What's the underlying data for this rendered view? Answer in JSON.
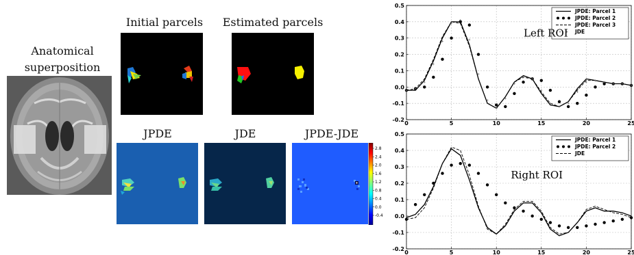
{
  "captions": {
    "anatomical_line1": "Anatomical",
    "anatomical_line2": "superposition",
    "initial": "Initial parcels",
    "estimated": "Estimated parcels",
    "jpde": "JPDE",
    "jde": "JDE",
    "diff": "JPDE-JDE"
  },
  "colorbar": {
    "ticks": [
      "2.8",
      "2.4",
      "2.0",
      "1.6",
      "1.2",
      "0.8",
      "0.4",
      "0.0",
      "-0.4"
    ]
  },
  "chart_data": [
    {
      "type": "line",
      "annotation": "Left ROI",
      "xlim": [
        0,
        25
      ],
      "ylim": [
        -0.2,
        0.5
      ],
      "xticks": [
        "0",
        "5",
        "10",
        "15",
        "20",
        "25"
      ],
      "yticks": [
        "-0.2",
        "-0.1",
        "0.0",
        "0.1",
        "0.2",
        "0.3",
        "0.4",
        "0.5"
      ],
      "grid": true,
      "legend": "top-right",
      "x": [
        0,
        1,
        2,
        3,
        4,
        5,
        6,
        7,
        8,
        9,
        10,
        11,
        12,
        13,
        14,
        15,
        16,
        17,
        18,
        19,
        20,
        21,
        22,
        23,
        24,
        25
      ],
      "series": [
        {
          "name": "JPDE: Parcel 1",
          "style": "solid",
          "values": [
            -0.02,
            -0.02,
            0.04,
            0.16,
            0.3,
            0.4,
            0.4,
            0.26,
            0.05,
            -0.1,
            -0.13,
            -0.06,
            0.03,
            0.07,
            0.05,
            -0.04,
            -0.11,
            -0.12,
            -0.09,
            -0.01,
            0.05,
            0.04,
            0.03,
            0.02,
            0.02,
            0.01
          ]
        },
        {
          "name": "JPDE: Parcel 2",
          "style": "dots",
          "values": [
            -0.02,
            -0.01,
            0.0,
            0.06,
            0.17,
            0.3,
            0.4,
            0.38,
            0.2,
            0.0,
            -0.11,
            -0.12,
            -0.04,
            0.03,
            0.05,
            0.04,
            -0.02,
            -0.09,
            -0.12,
            -0.1,
            -0.05,
            0.0,
            0.02,
            0.02,
            0.02,
            0.01
          ]
        },
        {
          "name": "JPDE: Parcel 3",
          "style": "dashed",
          "values": [
            -0.02,
            -0.01,
            0.05,
            0.17,
            0.31,
            0.4,
            0.39,
            0.25,
            0.05,
            -0.1,
            -0.13,
            -0.06,
            0.03,
            0.06,
            0.05,
            -0.03,
            -0.1,
            -0.12,
            -0.09,
            -0.02,
            0.04,
            0.04,
            0.03,
            0.02,
            0.02,
            0.01
          ]
        },
        {
          "name": "JDE",
          "style": "plus",
          "values": [
            -0.02,
            -0.01,
            0.03,
            0.14,
            0.28,
            0.39,
            0.41,
            0.29,
            0.08,
            -0.08,
            -0.13,
            -0.07,
            0.02,
            0.06,
            0.05,
            -0.02,
            -0.1,
            -0.12,
            -0.1,
            -0.03,
            0.03,
            0.04,
            0.03,
            0.02,
            0.02,
            0.01
          ]
        }
      ]
    },
    {
      "type": "line",
      "annotation": "Right ROI",
      "xlim": [
        0,
        25
      ],
      "ylim": [
        -0.2,
        0.5
      ],
      "xticks": [
        "0",
        "5",
        "10",
        "15",
        "20",
        "25"
      ],
      "yticks": [
        "-0.2",
        "-0.1",
        "0.0",
        "0.1",
        "0.2",
        "0.3",
        "0.4",
        "0.5"
      ],
      "grid": true,
      "legend": "top-right",
      "x": [
        0,
        1,
        2,
        3,
        4,
        5,
        6,
        7,
        8,
        9,
        10,
        11,
        12,
        13,
        14,
        15,
        16,
        17,
        18,
        19,
        20,
        21,
        22,
        23,
        24,
        25
      ],
      "series": [
        {
          "name": "JPDE: Parcel 1",
          "style": "solid",
          "values": [
            -0.01,
            0.01,
            0.07,
            0.18,
            0.32,
            0.41,
            0.37,
            0.22,
            0.05,
            -0.07,
            -0.11,
            -0.06,
            0.03,
            0.08,
            0.08,
            0.02,
            -0.08,
            -0.12,
            -0.1,
            -0.04,
            0.03,
            0.05,
            0.03,
            0.03,
            0.02,
            0.0
          ]
        },
        {
          "name": "JPDE: Parcel 2",
          "style": "dots",
          "values": [
            -0.02,
            0.07,
            0.13,
            0.2,
            0.26,
            0.31,
            0.32,
            0.31,
            0.26,
            0.19,
            0.13,
            0.08,
            0.05,
            0.03,
            0.0,
            -0.02,
            -0.04,
            -0.06,
            -0.07,
            -0.07,
            -0.06,
            -0.05,
            -0.04,
            -0.03,
            -0.02,
            -0.01
          ]
        },
        {
          "name": "JDE",
          "style": "dashed",
          "values": [
            -0.02,
            -0.01,
            0.05,
            0.17,
            0.32,
            0.42,
            0.4,
            0.25,
            0.06,
            -0.08,
            -0.11,
            -0.05,
            0.04,
            0.09,
            0.09,
            0.03,
            -0.07,
            -0.11,
            -0.1,
            -0.04,
            0.04,
            0.06,
            0.04,
            0.02,
            0.01,
            -0.01
          ]
        }
      ]
    }
  ]
}
